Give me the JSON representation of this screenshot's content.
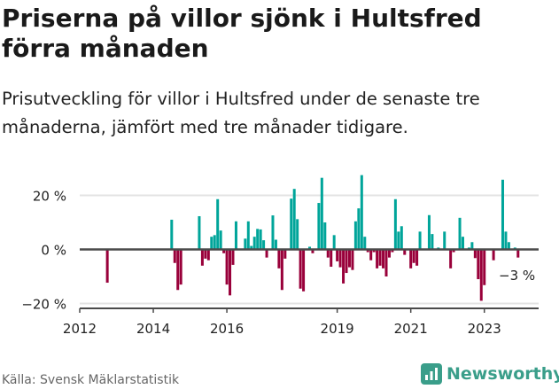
{
  "title": "Priserna på villor sjönk i Hultsfred förra månaden",
  "subtitle": "Prisutveckling för villor i Hultsfred under de senaste tre månaderna, jämfört med tre månader tidigare.",
  "source": "Källa: Svensk Mäklarstatistik",
  "logo_text": "Newsworthy",
  "colors": {
    "positive": "#00a59a",
    "negative": "#99003a",
    "grid": "#e3e3e3",
    "axis": "#4a4a4a",
    "logo": "#3a9e8a"
  },
  "chart_data": {
    "type": "bar",
    "title": "Priserna på villor sjönk i Hultsfred förra månaden",
    "xlabel": "",
    "ylabel": "",
    "x_start": "2012-01",
    "frequency": "monthly",
    "ylim": [
      -22,
      30
    ],
    "yticks": [
      20,
      0,
      -20
    ],
    "ytick_labels": [
      "20 %",
      "0 %",
      "−20 %"
    ],
    "xtick_labels": [
      {
        "label": "2012",
        "index": 0
      },
      {
        "label": "2014",
        "index": 24
      },
      {
        "label": "2016",
        "index": 48
      },
      {
        "label": "2019",
        "index": 84
      },
      {
        "label": "2021",
        "index": 108
      },
      {
        "label": "2023",
        "index": 132
      }
    ],
    "annotation": "−3 %",
    "values": [
      null,
      null,
      null,
      null,
      null,
      null,
      null,
      null,
      null,
      -12.3,
      null,
      null,
      null,
      null,
      null,
      null,
      null,
      null,
      null,
      null,
      null,
      null,
      null,
      null,
      null,
      null,
      null,
      null,
      null,
      null,
      11,
      -5,
      -15,
      -13,
      null,
      null,
      null,
      null,
      null,
      12.3,
      -6,
      -3.4,
      -4,
      4.7,
      5.3,
      18.6,
      7,
      -1.4,
      -13,
      -17,
      -5.7,
      10.4,
      null,
      null,
      4,
      10.4,
      1.3,
      4.7,
      7.6,
      7.4,
      3.4,
      -3,
      null,
      12.6,
      3.6,
      -7,
      -15,
      -3.4,
      null,
      18.8,
      22.4,
      11.2,
      -14.5,
      -15.5,
      null,
      1,
      -1.4,
      null,
      17.2,
      26.5,
      10,
      -3,
      -6.4,
      5.3,
      -4.4,
      -6.6,
      -12.6,
      -8.7,
      -6.6,
      -7.6,
      10.4,
      15.2,
      27.5,
      4.7,
      -1,
      -4,
      -1,
      -7,
      -6,
      -7,
      -10,
      -3,
      -1,
      18.6,
      6.6,
      8.6,
      -2,
      null,
      -7,
      -5,
      -6,
      6.6,
      null,
      null,
      12.7,
      5.7,
      null,
      0.7,
      null,
      6.6,
      null,
      -7,
      -1,
      null,
      11.7,
      4.7,
      null,
      0.7,
      2.7,
      -3.2,
      -11,
      -19,
      -13.2,
      null,
      null,
      -4,
      null,
      null,
      25.8,
      6.6,
      2.7,
      null,
      0.7,
      -3
    ]
  }
}
